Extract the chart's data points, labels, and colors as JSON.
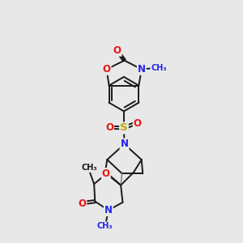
{
  "background_color": "#e8e8e8",
  "bond_color": "#1a1a1a",
  "bond_width": 1.4,
  "atom_colors": {
    "O": "#ee1111",
    "N": "#2222ee",
    "S": "#bbaa00",
    "C": "#1a1a1a"
  },
  "figsize": [
    3.0,
    3.0
  ],
  "dpi": 100,
  "xlim": [
    0,
    10
  ],
  "ylim": [
    0,
    10
  ]
}
